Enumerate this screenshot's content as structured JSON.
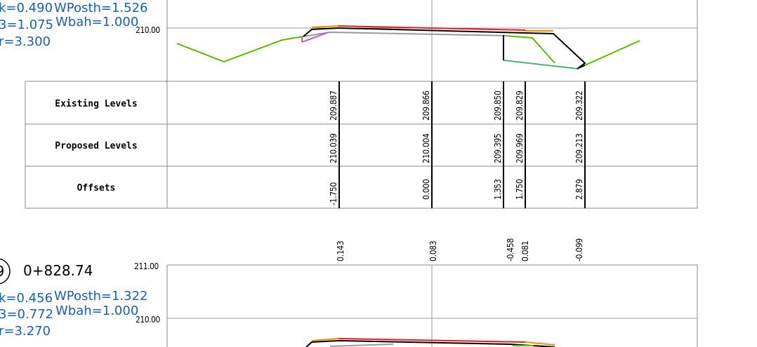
{
  "section1": {
    "info_lines": [
      "k=0.490",
      "WPosth=1.526",
      "3=1.075",
      "Wbah=1.000",
      "r=3.300"
    ],
    "elev_label": "210.00",
    "table": {
      "row_labels": [
        "Existing Levels",
        "Proposed Levels",
        "Offsets"
      ],
      "columns": [
        {
          "existing": "209.887",
          "proposed": "210.039",
          "offset": "-1.750"
        },
        {
          "existing": "209.866",
          "proposed": "210.004",
          "offset": "0.000"
        },
        {
          "existing": "209.850",
          "proposed": "209.395",
          "offset": "1.353"
        },
        {
          "existing": "209.829",
          "proposed": "209.969",
          "offset": "1.750"
        },
        {
          "existing": "209.322",
          "proposed": "209.213",
          "offset": "2.879"
        }
      ]
    }
  },
  "section2": {
    "diffs": [
      "0.143",
      "0.083",
      "-0.458",
      "0.081",
      "-0.099"
    ],
    "circle_num": "9",
    "chainage": "0+828.74",
    "info_lines": [
      "k=0.456",
      "WPosth=1.322",
      "3=0.772",
      "Wbah=1.000",
      "r=3.270"
    ],
    "elev_top": "211.00",
    "elev_mid": "210.00"
  },
  "colors": {
    "proposed": "#e01b24",
    "finished": "#000000",
    "existing_grass": "#5cb800",
    "shoulder": "#f08a00",
    "subgrade": "#999999",
    "drain": "#4caf7a",
    "batter": "#c061cb",
    "info_text": "#1a5fb4"
  }
}
